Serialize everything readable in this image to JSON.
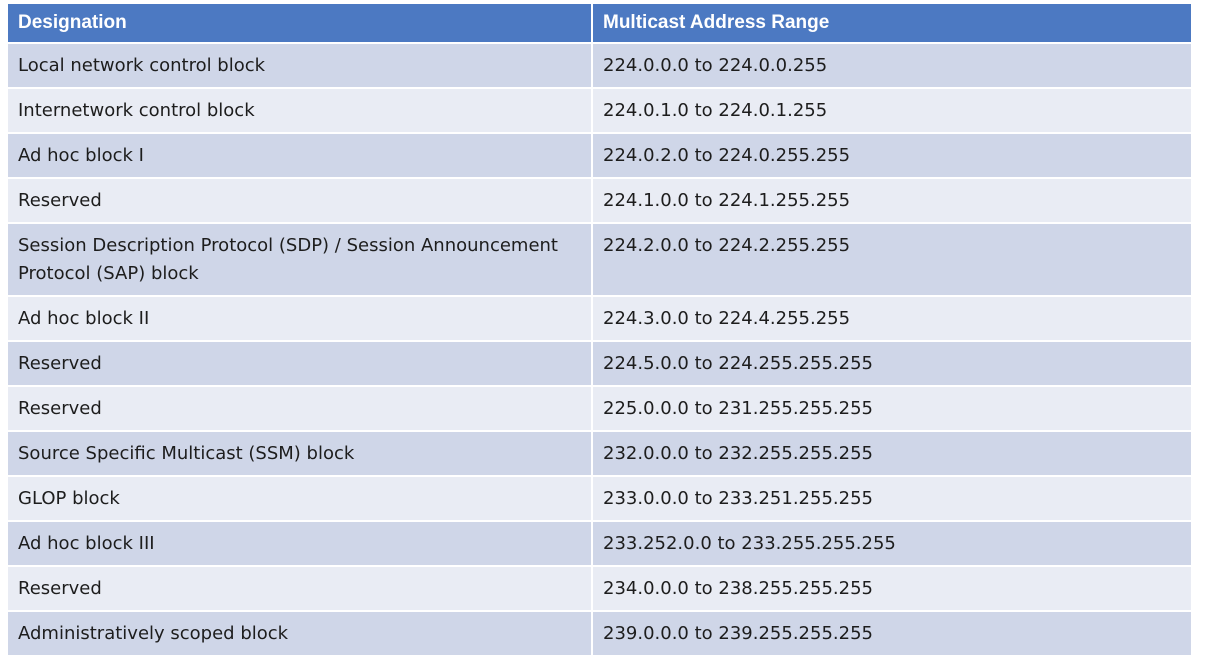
{
  "table": {
    "headers": [
      "Designation",
      "Multicast Address Range"
    ],
    "rows": [
      [
        "Local network control block",
        "224.0.0.0 to 224.0.0.255"
      ],
      [
        "Internetwork control block",
        "224.0.1.0 to 224.0.1.255"
      ],
      [
        "Ad hoc block I",
        "224.0.2.0 to 224.0.255.255"
      ],
      [
        "Reserved",
        "224.1.0.0 to 224.1.255.255"
      ],
      [
        "Session Description Protocol (SDP) / Session Announcement Protocol (SAP) block",
        "224.2.0.0 to 224.2.255.255"
      ],
      [
        "Ad hoc block II",
        "224.3.0.0 to 224.4.255.255"
      ],
      [
        "Reserved",
        "224.5.0.0 to 224.255.255.255"
      ],
      [
        "Reserved",
        "225.0.0.0 to 231.255.255.255"
      ],
      [
        "Source Specific Multicast (SSM) block",
        "232.0.0.0 to 232.255.255.255"
      ],
      [
        "GLOP block",
        "233.0.0.0 to 233.251.255.255"
      ],
      [
        "Ad hoc block III",
        "233.252.0.0 to 233.255.255.255"
      ],
      [
        "Reserved",
        "234.0.0.0 to 238.255.255.255"
      ],
      [
        "Administratively scoped block",
        "239.0.0.0 to 239.255.255.255"
      ]
    ]
  },
  "colors": {
    "header_bg": "#4c79c2",
    "row_odd_bg": "#cfd6e8",
    "row_even_bg": "#e9ecf4",
    "text": "#1d1d1d"
  }
}
